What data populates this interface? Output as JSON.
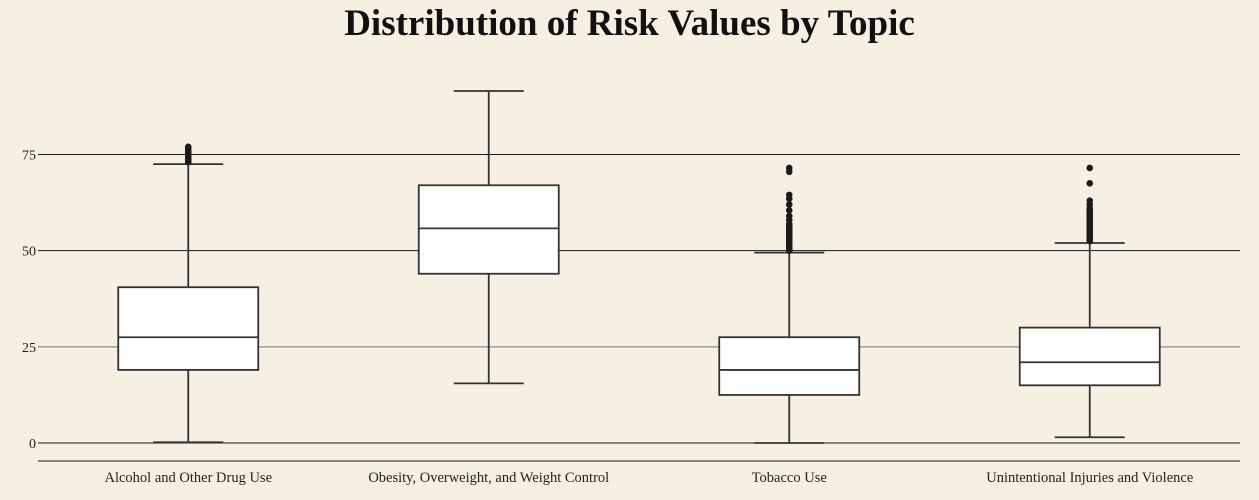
{
  "chart_data": {
    "type": "box",
    "title": "Distribution of Risk Values by Topic",
    "xlabel": "",
    "ylabel": "",
    "ylim": [
      -5,
      98
    ],
    "yticks": [
      0,
      25,
      50,
      75
    ],
    "grid": true,
    "categories": [
      "Alcohol and Other Drug Use",
      "Obesity, Overweight, and Weight Control",
      "Tobacco Use",
      "Unintentional Injuries and Violence"
    ],
    "boxes": [
      {
        "category": "Alcohol and Other Drug Use",
        "whisker_low": 0.2,
        "q1": 19,
        "median": 27.5,
        "q3": 40.5,
        "whisker_high": 72.5,
        "outliers": [
          73,
          73.5,
          74,
          74.5,
          75,
          75.5,
          76,
          76.5,
          77
        ]
      },
      {
        "category": "Obesity, Overweight, and Weight Control",
        "whisker_low": 15.5,
        "q1": 44,
        "median": 55.8,
        "q3": 67,
        "whisker_high": 91.5,
        "outliers": []
      },
      {
        "category": "Tobacco Use",
        "whisker_low": 0,
        "q1": 12.5,
        "median": 19,
        "q3": 27.5,
        "whisker_high": 49.5,
        "outliers": [
          50,
          50.5,
          51,
          51.5,
          52,
          52.5,
          53,
          53.5,
          54,
          54.5,
          55,
          55.5,
          56,
          56.5,
          57,
          58,
          59,
          60.5,
          62,
          63.5,
          64.5,
          70.5,
          71.5
        ]
      },
      {
        "category": "Unintentional Injuries and Violence",
        "whisker_low": 1.5,
        "q1": 15,
        "median": 21,
        "q3": 30,
        "whisker_high": 52,
        "outliers": [
          52.5,
          53,
          53.5,
          54,
          54.5,
          55,
          55.5,
          56,
          56.5,
          57,
          57.5,
          58,
          58.5,
          59,
          59.5,
          60,
          60.5,
          61,
          62,
          63,
          67.5,
          71.5
        ]
      }
    ]
  }
}
